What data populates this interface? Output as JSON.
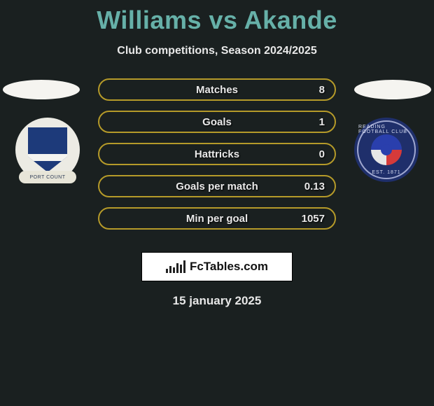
{
  "title": "Williams vs Akande",
  "subtitle": "Club competitions, Season 2024/2025",
  "title_color": "#66b0a8",
  "background_color": "#1a2020",
  "bar_border_color": "#b59a29",
  "stats": [
    {
      "label": "Matches",
      "value": "8"
    },
    {
      "label": "Goals",
      "value": "1"
    },
    {
      "label": "Hattricks",
      "value": "0"
    },
    {
      "label": "Goals per match",
      "value": "0.13"
    },
    {
      "label": "Min per goal",
      "value": "1057"
    }
  ],
  "left_club": {
    "scroll_text": "PORT COUNT",
    "shield_color": "#1d3a7a",
    "bg_color": "#ecebe4"
  },
  "right_club": {
    "ring_top": "READING FOOTBALL CLUB",
    "ring_bottom": "EST. 1871",
    "bg_color": "#1f2f6b"
  },
  "brand": "FcTables.com",
  "date": "15 january 2025",
  "chart_bar_heights": [
    6,
    10,
    8,
    14,
    12,
    18
  ]
}
